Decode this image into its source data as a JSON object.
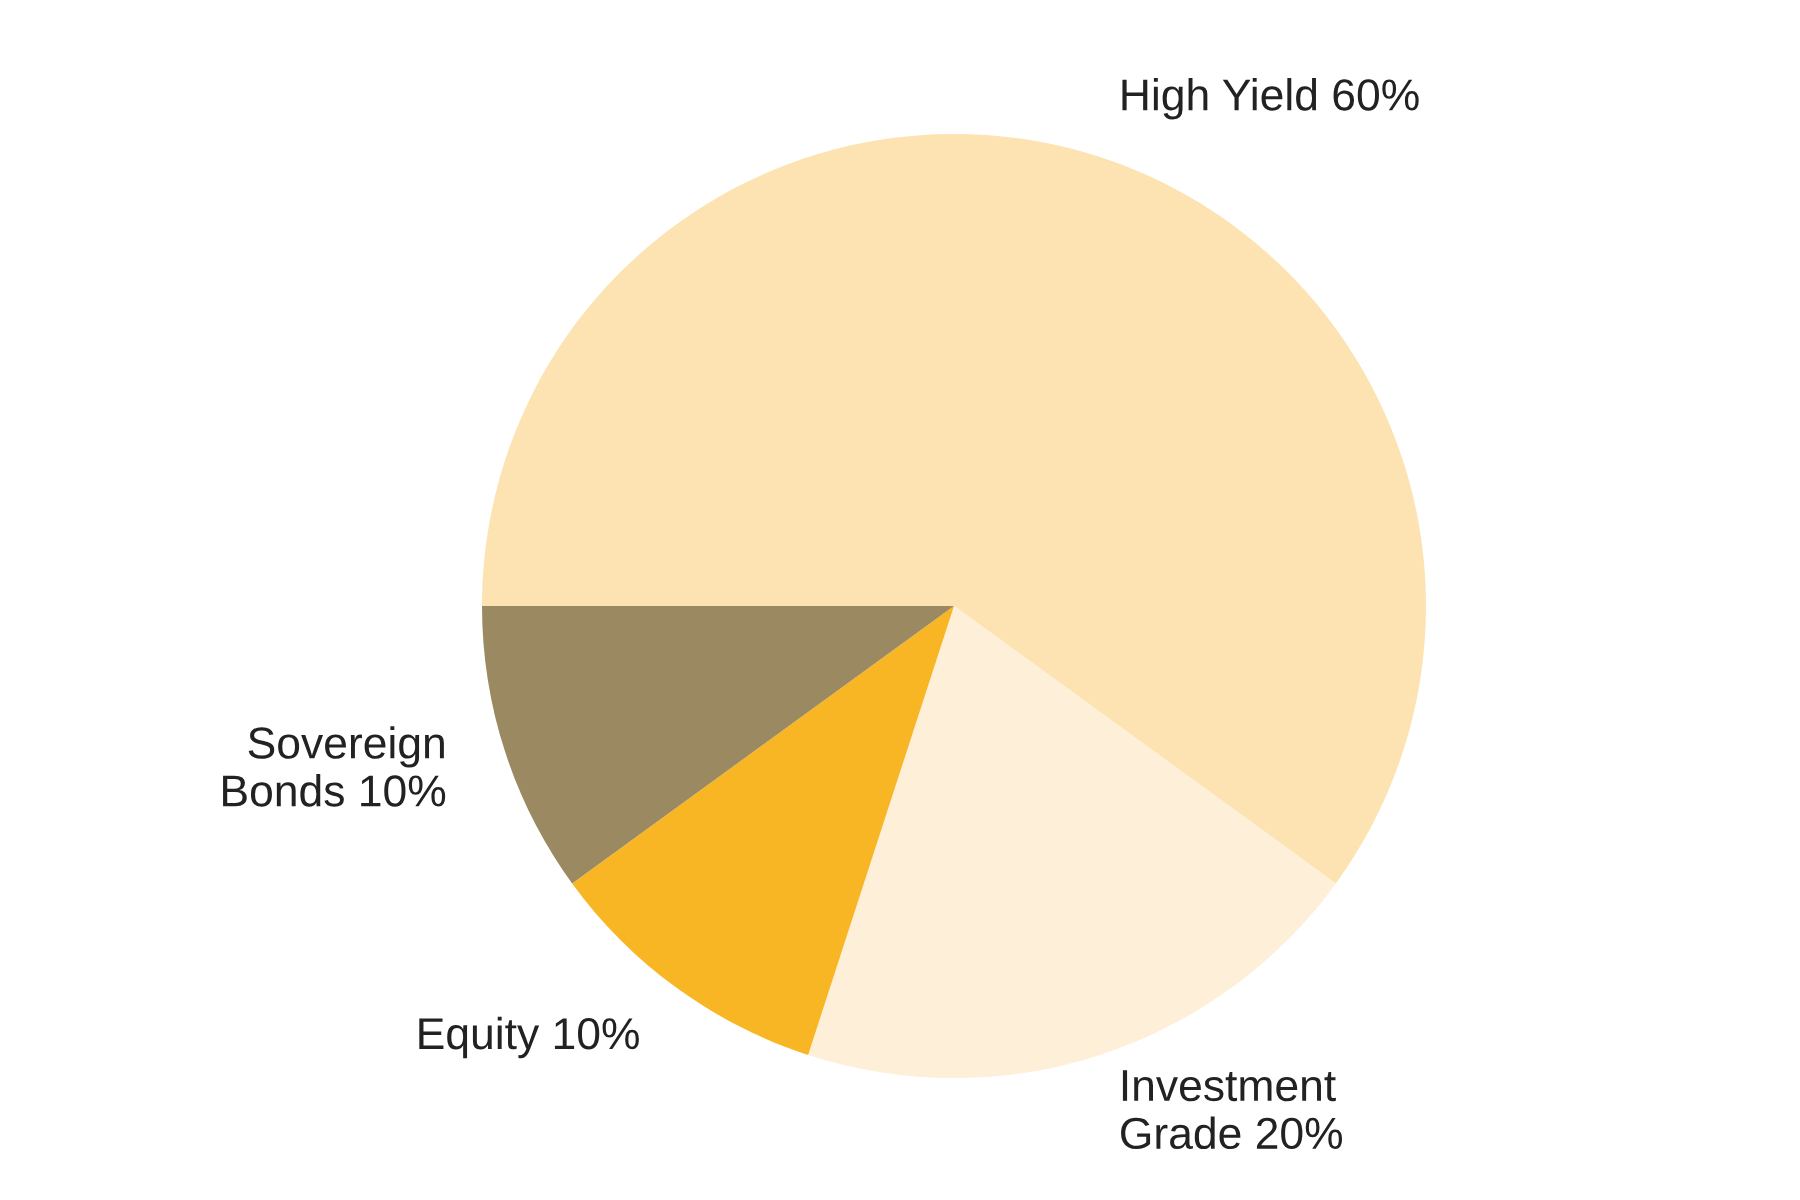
{
  "chart_data": {
    "type": "pie",
    "categories": [
      "High Yield",
      "Investment\nGrade",
      "Equity",
      "Sovereign\nBonds"
    ],
    "values": [
      60,
      20,
      10,
      10
    ],
    "value_labels": [
      "60%",
      "20%",
      "10%",
      "10%"
    ],
    "colors": [
      "#fde2b2",
      "#feefd8",
      "#f8b624",
      "#9b8961"
    ]
  }
}
